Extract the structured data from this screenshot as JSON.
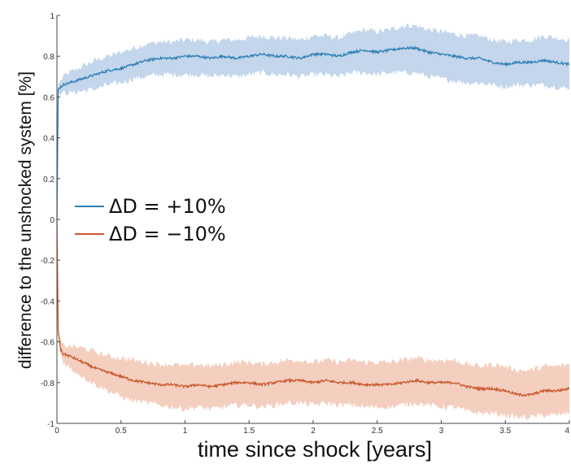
{
  "chart_data": {
    "type": "line",
    "xlabel": "time since shock [years]",
    "ylabel": "difference to the unshocked system [%]",
    "xlim": [
      0,
      4
    ],
    "ylim": [
      -1,
      1
    ],
    "xticks": [
      "0",
      "0.5",
      "1",
      "1.5",
      "2",
      "2.5",
      "3",
      "3.5",
      "4"
    ],
    "yticks": [
      "-1",
      "-0.8",
      "-0.6",
      "-0.4",
      "-0.2",
      "0",
      "0.2",
      "0.4",
      "0.6",
      "0.8",
      "1"
    ],
    "legend_position": "left-center",
    "series": [
      {
        "name": "ΔD = +10%",
        "color": "#2f7fb5",
        "band_color": "#b8cfe8",
        "x": [
          0,
          0.01,
          0.05,
          0.1,
          0.2,
          0.3,
          0.4,
          0.5,
          0.6,
          0.7,
          0.8,
          0.9,
          1.0,
          1.1,
          1.2,
          1.3,
          1.4,
          1.5,
          1.6,
          1.7,
          1.8,
          1.9,
          2.0,
          2.1,
          2.2,
          2.3,
          2.4,
          2.5,
          2.6,
          2.7,
          2.8,
          2.9,
          3.0,
          3.1,
          3.2,
          3.3,
          3.4,
          3.5,
          3.6,
          3.7,
          3.8,
          3.9,
          4.0
        ],
        "values": [
          0.0,
          0.64,
          0.66,
          0.67,
          0.69,
          0.71,
          0.73,
          0.74,
          0.76,
          0.78,
          0.79,
          0.79,
          0.8,
          0.8,
          0.79,
          0.8,
          0.79,
          0.8,
          0.81,
          0.8,
          0.8,
          0.79,
          0.81,
          0.81,
          0.8,
          0.82,
          0.83,
          0.82,
          0.83,
          0.84,
          0.84,
          0.82,
          0.81,
          0.8,
          0.79,
          0.79,
          0.77,
          0.76,
          0.77,
          0.77,
          0.78,
          0.77,
          0.76
        ],
        "lower": [
          0.0,
          0.62,
          0.62,
          0.62,
          0.63,
          0.64,
          0.66,
          0.67,
          0.69,
          0.7,
          0.71,
          0.71,
          0.71,
          0.71,
          0.7,
          0.71,
          0.7,
          0.71,
          0.72,
          0.71,
          0.71,
          0.7,
          0.71,
          0.71,
          0.7,
          0.72,
          0.72,
          0.71,
          0.72,
          0.72,
          0.72,
          0.7,
          0.69,
          0.68,
          0.67,
          0.67,
          0.66,
          0.65,
          0.66,
          0.66,
          0.66,
          0.65,
          0.64
        ],
        "upper": [
          0.0,
          0.66,
          0.7,
          0.72,
          0.75,
          0.78,
          0.8,
          0.82,
          0.84,
          0.86,
          0.87,
          0.87,
          0.88,
          0.88,
          0.87,
          0.88,
          0.88,
          0.89,
          0.9,
          0.89,
          0.89,
          0.88,
          0.9,
          0.9,
          0.89,
          0.91,
          0.93,
          0.92,
          0.93,
          0.95,
          0.95,
          0.93,
          0.92,
          0.91,
          0.9,
          0.9,
          0.88,
          0.87,
          0.88,
          0.88,
          0.9,
          0.89,
          0.88
        ]
      },
      {
        "name": "ΔD = −10%",
        "color": "#c8582c",
        "band_color": "#f2c7b4",
        "x": [
          0,
          0.01,
          0.03,
          0.05,
          0.1,
          0.2,
          0.3,
          0.4,
          0.5,
          0.6,
          0.7,
          0.8,
          0.9,
          1.0,
          1.1,
          1.2,
          1.3,
          1.4,
          1.5,
          1.6,
          1.7,
          1.8,
          1.9,
          2.0,
          2.1,
          2.2,
          2.3,
          2.4,
          2.5,
          2.6,
          2.7,
          2.8,
          2.9,
          3.0,
          3.1,
          3.2,
          3.3,
          3.4,
          3.5,
          3.6,
          3.7,
          3.8,
          3.9,
          4.0
        ],
        "values": [
          0.0,
          -0.55,
          -0.64,
          -0.66,
          -0.67,
          -0.7,
          -0.73,
          -0.75,
          -0.77,
          -0.79,
          -0.8,
          -0.81,
          -0.81,
          -0.82,
          -0.81,
          -0.82,
          -0.81,
          -0.8,
          -0.8,
          -0.81,
          -0.8,
          -0.79,
          -0.79,
          -0.8,
          -0.79,
          -0.8,
          -0.8,
          -0.81,
          -0.81,
          -0.81,
          -0.8,
          -0.79,
          -0.8,
          -0.8,
          -0.8,
          -0.82,
          -0.83,
          -0.83,
          -0.84,
          -0.86,
          -0.86,
          -0.84,
          -0.84,
          -0.83
        ],
        "lower": [
          0.0,
          -0.57,
          -0.66,
          -0.7,
          -0.73,
          -0.77,
          -0.81,
          -0.84,
          -0.87,
          -0.89,
          -0.9,
          -0.91,
          -0.92,
          -0.93,
          -0.92,
          -0.93,
          -0.92,
          -0.91,
          -0.91,
          -0.92,
          -0.91,
          -0.9,
          -0.9,
          -0.91,
          -0.9,
          -0.91,
          -0.91,
          -0.92,
          -0.92,
          -0.92,
          -0.91,
          -0.9,
          -0.91,
          -0.92,
          -0.92,
          -0.94,
          -0.95,
          -0.95,
          -0.96,
          -0.97,
          -0.97,
          -0.96,
          -0.96,
          -0.95
        ],
        "upper": [
          0.0,
          -0.53,
          -0.6,
          -0.62,
          -0.62,
          -0.63,
          -0.65,
          -0.67,
          -0.68,
          -0.69,
          -0.7,
          -0.71,
          -0.71,
          -0.72,
          -0.71,
          -0.72,
          -0.71,
          -0.7,
          -0.7,
          -0.71,
          -0.7,
          -0.69,
          -0.69,
          -0.7,
          -0.69,
          -0.7,
          -0.69,
          -0.7,
          -0.7,
          -0.7,
          -0.69,
          -0.68,
          -0.69,
          -0.69,
          -0.69,
          -0.71,
          -0.72,
          -0.71,
          -0.72,
          -0.74,
          -0.74,
          -0.72,
          -0.72,
          -0.71
        ]
      }
    ]
  },
  "legend": {
    "plus_label": "ΔD = +10%",
    "minus_label": "ΔD = −10%"
  }
}
